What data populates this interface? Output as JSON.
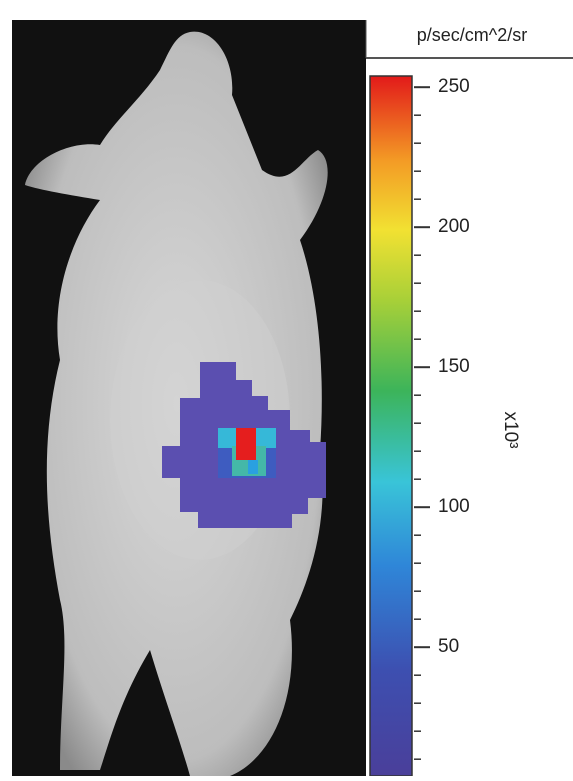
{
  "colorbar": {
    "unit": "p/sec/cm^2/sr",
    "multiplier": "x10³",
    "range": [
      4,
      254
    ],
    "ticks": [
      250,
      200,
      150,
      100,
      50
    ],
    "minor_tick_step": 10
  }
}
